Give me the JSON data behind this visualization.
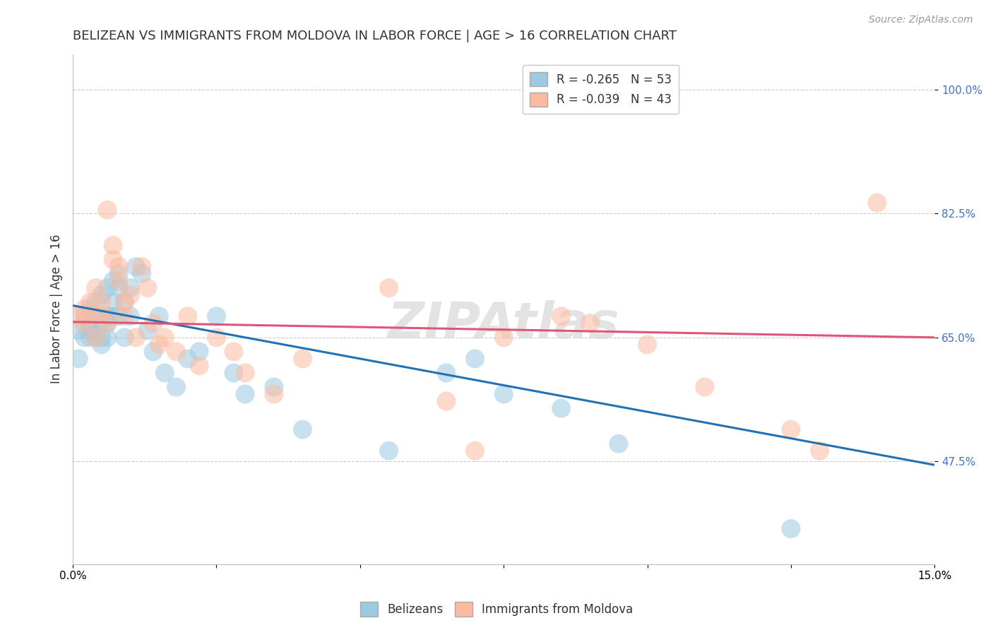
{
  "title": "BELIZEAN VS IMMIGRANTS FROM MOLDOVA IN LABOR FORCE | AGE > 16 CORRELATION CHART",
  "source": "Source: ZipAtlas.com",
  "ylabel": "In Labor Force | Age > 16",
  "xlim": [
    0.0,
    0.15
  ],
  "ylim": [
    0.33,
    1.05
  ],
  "xticks": [
    0.0,
    0.025,
    0.05,
    0.075,
    0.1,
    0.125,
    0.15
  ],
  "xticklabels": [
    "0.0%",
    "",
    "",
    "",
    "",
    "",
    "15.0%"
  ],
  "ytick_positions": [
    0.475,
    0.65,
    0.825,
    1.0
  ],
  "ytick_labels": [
    "47.5%",
    "65.0%",
    "82.5%",
    "100.0%"
  ],
  "blue_color": "#9ecae1",
  "pink_color": "#fcbba1",
  "blue_line_color": "#2171b5",
  "pink_line_color": "#e05577",
  "blue_scatter_x": [
    0.001,
    0.001,
    0.002,
    0.002,
    0.002,
    0.003,
    0.003,
    0.003,
    0.003,
    0.004,
    0.004,
    0.004,
    0.004,
    0.005,
    0.005,
    0.005,
    0.005,
    0.005,
    0.006,
    0.006,
    0.006,
    0.006,
    0.007,
    0.007,
    0.007,
    0.008,
    0.008,
    0.008,
    0.009,
    0.009,
    0.01,
    0.01,
    0.011,
    0.012,
    0.013,
    0.014,
    0.015,
    0.016,
    0.018,
    0.02,
    0.022,
    0.025,
    0.028,
    0.03,
    0.035,
    0.04,
    0.055,
    0.065,
    0.07,
    0.075,
    0.085,
    0.095,
    0.125
  ],
  "blue_scatter_y": [
    0.66,
    0.62,
    0.68,
    0.65,
    0.67,
    0.69,
    0.66,
    0.65,
    0.67,
    0.7,
    0.65,
    0.68,
    0.66,
    0.71,
    0.68,
    0.65,
    0.67,
    0.64,
    0.72,
    0.68,
    0.65,
    0.67,
    0.73,
    0.7,
    0.68,
    0.74,
    0.72,
    0.68,
    0.7,
    0.65,
    0.72,
    0.68,
    0.75,
    0.74,
    0.66,
    0.63,
    0.68,
    0.6,
    0.58,
    0.62,
    0.63,
    0.68,
    0.6,
    0.57,
    0.58,
    0.52,
    0.49,
    0.6,
    0.62,
    0.57,
    0.55,
    0.5,
    0.38
  ],
  "pink_scatter_x": [
    0.001,
    0.002,
    0.002,
    0.003,
    0.003,
    0.004,
    0.004,
    0.005,
    0.005,
    0.006,
    0.006,
    0.007,
    0.007,
    0.008,
    0.008,
    0.009,
    0.009,
    0.01,
    0.011,
    0.012,
    0.013,
    0.014,
    0.015,
    0.016,
    0.018,
    0.02,
    0.022,
    0.025,
    0.028,
    0.03,
    0.035,
    0.04,
    0.055,
    0.065,
    0.07,
    0.075,
    0.085,
    0.09,
    0.1,
    0.11,
    0.125,
    0.13,
    0.14
  ],
  "pink_scatter_y": [
    0.68,
    0.67,
    0.69,
    0.7,
    0.68,
    0.65,
    0.72,
    0.7,
    0.68,
    0.83,
    0.67,
    0.78,
    0.76,
    0.75,
    0.73,
    0.7,
    0.68,
    0.71,
    0.65,
    0.75,
    0.72,
    0.67,
    0.64,
    0.65,
    0.63,
    0.68,
    0.61,
    0.65,
    0.63,
    0.6,
    0.57,
    0.62,
    0.72,
    0.56,
    0.49,
    0.65,
    0.68,
    0.67,
    0.64,
    0.58,
    0.52,
    0.49,
    0.84
  ],
  "blue_line_x0": 0.0,
  "blue_line_y0": 0.695,
  "blue_line_x1": 0.15,
  "blue_line_y1": 0.47,
  "pink_line_x0": 0.0,
  "pink_line_y0": 0.672,
  "pink_line_x1": 0.15,
  "pink_line_y1": 0.65,
  "legend_blue_label": "R = -0.265   N = 53",
  "legend_pink_label": "R = -0.039   N = 43",
  "bottom_legend_blue": "Belizeans",
  "bottom_legend_pink": "Immigrants from Moldova",
  "watermark": "ZIPAtlas",
  "grid_color": "#cccccc",
  "background_color": "#ffffff",
  "title_color": "#333333",
  "axis_color": "#4472c4"
}
